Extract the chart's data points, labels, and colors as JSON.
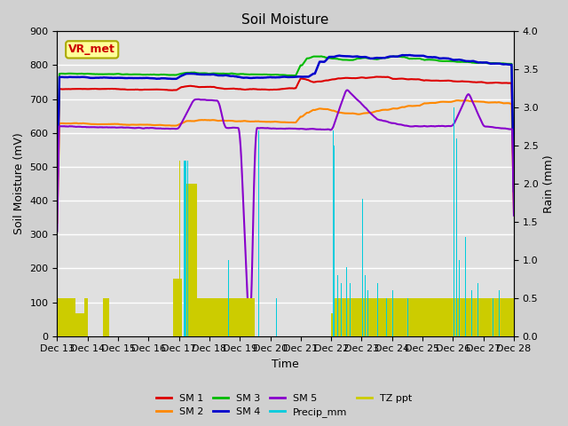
{
  "title": "Soil Moisture",
  "xlabel": "Time",
  "ylabel_left": "Soil Moisture (mV)",
  "ylabel_right": "Rain (mm)",
  "ylim_left": [
    0,
    900
  ],
  "ylim_right": [
    0.0,
    4.0
  ],
  "fig_bg": "#d0d0d0",
  "ax_bg": "#e0e0e0",
  "annotation_text": "VR_met",
  "annotation_color": "#cc0000",
  "annotation_bg": "#ffff99",
  "annotation_border": "#aaaa00",
  "colors": {
    "SM1": "#dd0000",
    "SM2": "#ff8800",
    "SM3": "#00bb00",
    "SM4": "#0000cc",
    "SM5": "#8800cc",
    "Precip": "#00ccdd",
    "TZppt": "#cccc00"
  },
  "xtick_labels": [
    "Dec 13",
    "Dec 14",
    "Dec 15",
    "Dec 16",
    "Dec 17",
    "Dec 18",
    "Dec 19",
    "Dec 20",
    "Dec 21",
    "Dec 22",
    "Dec 23",
    "Dec 24",
    "Dec 25",
    "Dec 26",
    "Dec 27",
    "Dec 28"
  ],
  "yticks_left": [
    0,
    100,
    200,
    300,
    400,
    500,
    600,
    700,
    800,
    900
  ],
  "yticks_right": [
    0.0,
    0.5,
    1.0,
    1.5,
    2.0,
    2.5,
    3.0,
    3.5,
    4.0
  ]
}
